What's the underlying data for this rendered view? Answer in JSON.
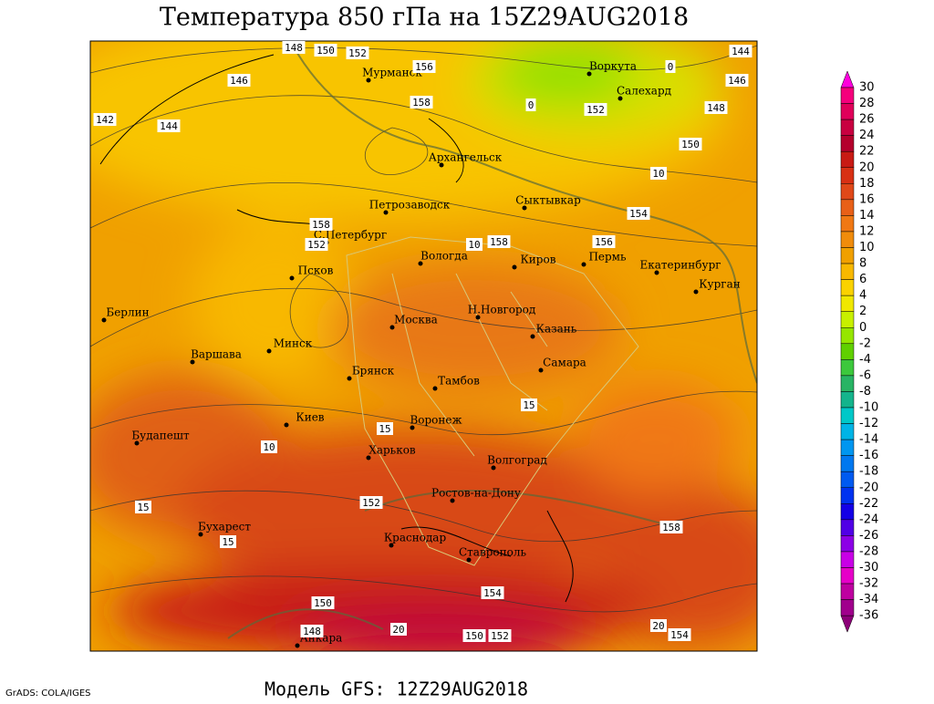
{
  "header": {
    "title": "Температура 850 гПа на 15Z29AUG2018"
  },
  "footer": {
    "model": "Модель GFS: 12Z29AUG2018",
    "credit": "GrADS: COLA/IGES"
  },
  "cities": [
    "Мурманск",
    "Воркута",
    "Салехард",
    "Архангельск",
    "Петрозаводск",
    "Сыктывкар",
    "С.Петербург",
    "Вологда",
    "Киров",
    "Пермь",
    "Екатеринбург",
    "Курган",
    "Псков",
    "Берлин",
    "Москва",
    "Н.Новгород",
    "Казань",
    "Варшава",
    "Минск",
    "Брянск",
    "Самара",
    "Тамбов",
    "Киев",
    "Воронеж",
    "Будапешт",
    "Харьков",
    "Волгоград",
    "Ростов-на-Дону",
    "Бухарест",
    "Краснодар",
    "Ставрополь",
    "Анкара"
  ],
  "contour_labels": [
    "148",
    "150",
    "152",
    "156",
    "146",
    "142",
    "144",
    "158",
    "152",
    "144",
    "146",
    "148",
    "150",
    "10",
    "154",
    "156",
    "158",
    "10",
    "158",
    "152",
    "15",
    "15",
    "10",
    "15",
    "15",
    "152",
    "158",
    "154",
    "150",
    "148",
    "20",
    "150",
    "152",
    "20",
    "154",
    "0",
    "0"
  ],
  "colorbar": {
    "levels": [
      30,
      28,
      26,
      24,
      22,
      20,
      18,
      16,
      14,
      12,
      10,
      8,
      6,
      4,
      2,
      0,
      -2,
      -4,
      -6,
      -8,
      -10,
      -12,
      -14,
      -16,
      -18,
      -20,
      -22,
      -24,
      -26,
      -28,
      -30,
      -32,
      -34,
      -36
    ],
    "colors": [
      "#ff00dd",
      "#f5007c",
      "#e0005a",
      "#c80040",
      "#b4002c",
      "#c81a14",
      "#d83014",
      "#e04818",
      "#e86018",
      "#f07814",
      "#f08c0c",
      "#f0a000",
      "#f8b800",
      "#fad200",
      "#f0e800",
      "#c8f000",
      "#96e600",
      "#60d000",
      "#3cc83c",
      "#28b464",
      "#14b48c",
      "#00c8c8",
      "#00b4e6",
      "#0096f0",
      "#0078f0",
      "#005af0",
      "#0032f0",
      "#1400e6",
      "#5000e6",
      "#8c00e6",
      "#c800e6",
      "#e600c8",
      "#be00a0",
      "#a0008c",
      "#8c0078"
    ]
  }
}
